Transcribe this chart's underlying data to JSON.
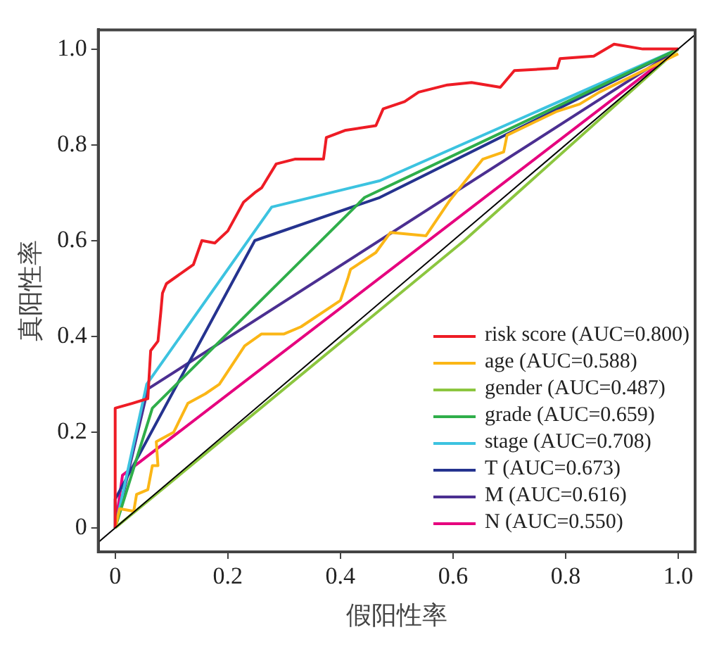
{
  "chart_data": {
    "type": "line",
    "xlabel": "假阳性率",
    "ylabel": "真阳性率",
    "xlim": [
      -0.03,
      1.03
    ],
    "ylim": [
      -0.05,
      1.04
    ],
    "xticks": [
      0,
      0.2,
      0.4,
      0.6,
      0.8,
      {
        "value": 1,
        "label": "1.0"
      }
    ],
    "yticks": [
      0,
      0.2,
      0.4,
      0.6,
      0.8,
      {
        "value": 1,
        "label": "1.0"
      }
    ],
    "grid": false,
    "legend": "bottom right",
    "marker": "none",
    "line_style": "solid",
    "series": [
      {
        "color": "#000000",
        "x": [
          -0.03,
          1.03
        ],
        "values": [
          -0.03,
          1.03
        ]
      },
      {
        "name": "risk score (AUC=0.800)",
        "color": "#ee1c25",
        "x": [
          0,
          0,
          0.03,
          0.058,
          0.063,
          0.076,
          0.081,
          0.084,
          0.091,
          0.127,
          0.139,
          0.154,
          0.177,
          0.2,
          0.228,
          0.248,
          0.26,
          0.286,
          0.319,
          0.37,
          0.375,
          0.408,
          0.463,
          0.476,
          0.514,
          0.539,
          0.59,
          0.633,
          0.684,
          0.709,
          0.785,
          0.79,
          0.85,
          0.886,
          0.937,
          0.97,
          1
        ],
        "values": [
          0,
          0.25,
          0.26,
          0.27,
          0.37,
          0.39,
          0.45,
          0.49,
          0.51,
          0.54,
          0.55,
          0.6,
          0.595,
          0.62,
          0.68,
          0.7,
          0.71,
          0.76,
          0.77,
          0.77,
          0.815,
          0.83,
          0.84,
          0.875,
          0.89,
          0.91,
          0.925,
          0.93,
          0.92,
          0.955,
          0.96,
          0.98,
          0.985,
          1.01,
          1.0,
          1.0,
          1.0
        ]
      },
      {
        "name": "age (AUC=0.588)",
        "color": "#fbb616",
        "x": [
          0,
          0.008,
          0.033,
          0.038,
          0.058,
          0.066,
          0.076,
          0.073,
          0.104,
          0.129,
          0.16,
          0.185,
          0.23,
          0.26,
          0.3,
          0.33,
          0.4,
          0.413,
          0.418,
          0.463,
          0.489,
          0.552,
          0.595,
          0.653,
          0.69,
          0.696,
          0.785,
          0.825,
          0.86,
          1
        ],
        "values": [
          0,
          0.04,
          0.035,
          0.07,
          0.08,
          0.13,
          0.13,
          0.18,
          0.2,
          0.26,
          0.28,
          0.3,
          0.38,
          0.405,
          0.405,
          0.42,
          0.475,
          0.52,
          0.54,
          0.575,
          0.617,
          0.61,
          0.685,
          0.77,
          0.785,
          0.82,
          0.87,
          0.885,
          0.91,
          0.99
        ]
      },
      {
        "name": "gender (AUC=0.487)",
        "color": "#8cc63f",
        "x": [
          0,
          0.62,
          1
        ],
        "values": [
          0,
          0.6,
          1
        ]
      },
      {
        "name": "grade (AUC=0.659)",
        "color": "#2fae4a",
        "x": [
          0,
          0.066,
          0.443,
          1
        ],
        "values": [
          0,
          0.25,
          0.69,
          1
        ]
      },
      {
        "name": "stage (AUC=0.708)",
        "color": "#3cc3e0",
        "x": [
          0,
          0.056,
          0.278,
          0.47,
          1
        ],
        "values": [
          0,
          0.3,
          0.67,
          0.725,
          1
        ]
      },
      {
        "name": "T (AUC=0.673)",
        "color": "#25338f",
        "x": [
          0,
          0,
          0.248,
          0.47,
          1
        ],
        "values": [
          0,
          0.06,
          0.6,
          0.69,
          1
        ]
      },
      {
        "name": "M (AUC=0.616)",
        "color": "#4b2f91",
        "x": [
          0,
          0.058,
          1
        ],
        "values": [
          0,
          0.29,
          1
        ]
      },
      {
        "name": "N (AUC=0.550)",
        "color": "#e6007e",
        "x": [
          0,
          0.013,
          1
        ],
        "values": [
          0,
          0.11,
          1
        ]
      }
    ]
  }
}
